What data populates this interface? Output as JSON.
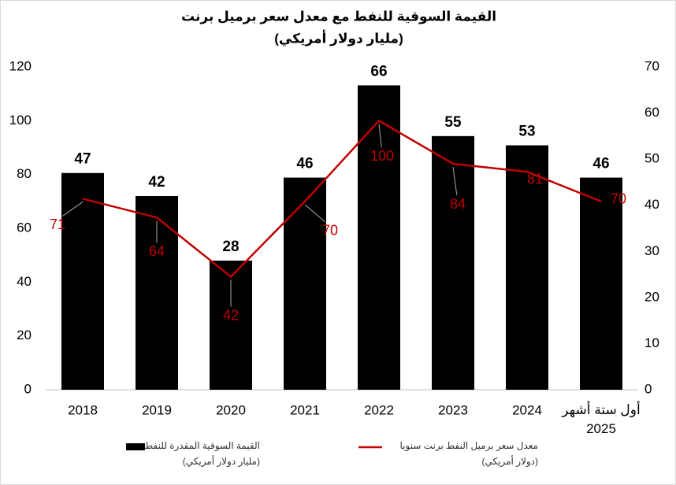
{
  "chart_data": {
    "type": "bar",
    "title": "القيمة السوقية للنفط مع معدل سعر برميل برنت",
    "subtitle": "(مليار دولار أمريكي)",
    "categories": [
      "2018",
      "2019",
      "2020",
      "2021",
      "2022",
      "2023",
      "2024",
      "أول ستة أشهر 2025"
    ],
    "series": [
      {
        "name": "القيمة السوقية المقدرة للنفط",
        "unit": "(مليار دولار أمريكي)",
        "type": "bar",
        "axis": "y2",
        "color": "#000000",
        "values": [
          47,
          42,
          28,
          46,
          66,
          55,
          53,
          46
        ]
      },
      {
        "name": "معدل سعر برميل النفط برنت سنويا",
        "unit": "(دولار أمريكي)",
        "type": "line",
        "color": "#c00000",
        "values": [
          71,
          64,
          42,
          70,
          100,
          84,
          81,
          70
        ]
      }
    ],
    "ylim": [
      0,
      120
    ],
    "yticks": [
      0,
      20,
      40,
      60,
      80,
      100,
      120
    ],
    "y2lim": [
      0,
      70
    ],
    "y2ticks": [
      0,
      10,
      20,
      30,
      40,
      50,
      60,
      70
    ],
    "grid": false
  }
}
